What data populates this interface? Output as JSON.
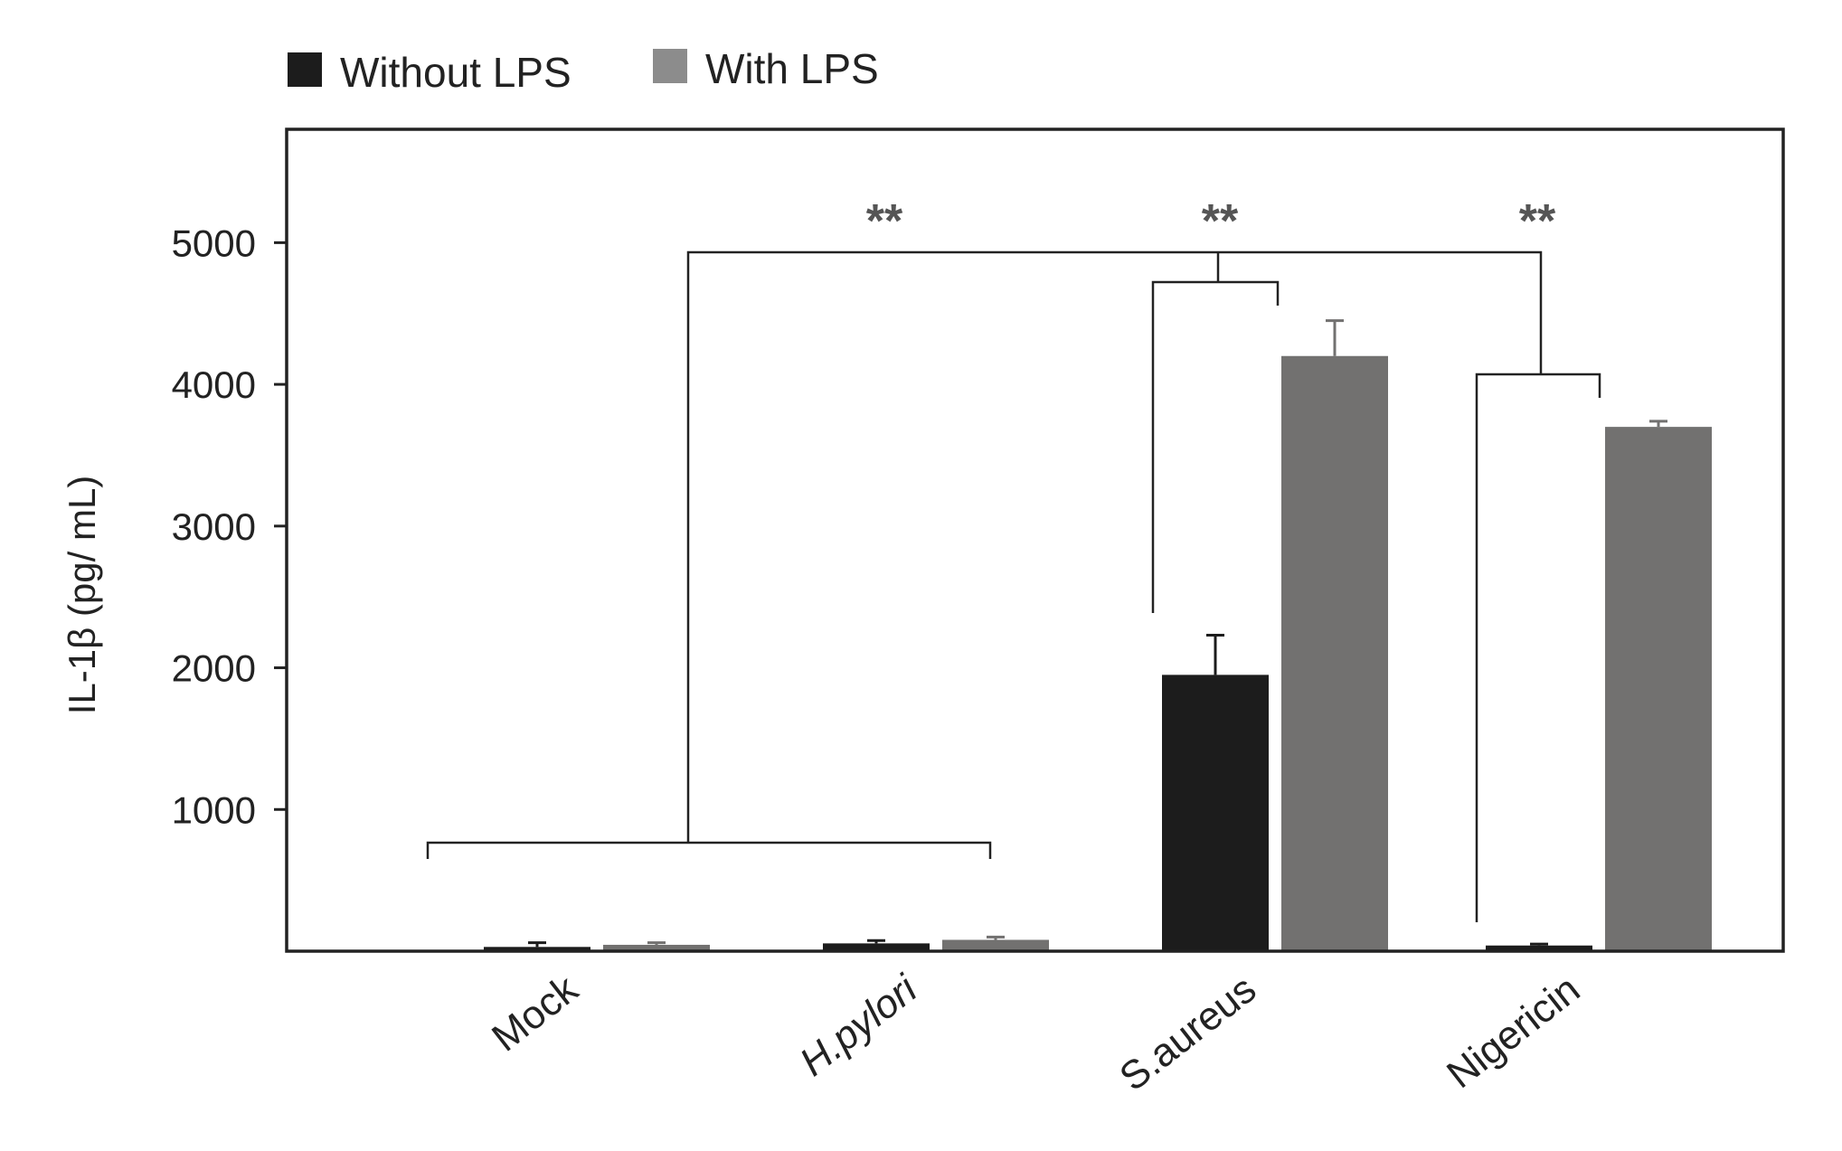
{
  "chart_data": {
    "type": "bar",
    "title": "",
    "xlabel": "",
    "ylabel": "IL-1β (pg/ mL)",
    "ylim": [
      0,
      5800
    ],
    "yticks": [
      1000,
      2000,
      3000,
      4000,
      5000
    ],
    "grid": false,
    "legend_position": "top-left",
    "categories": [
      "Mock",
      "H.pylori",
      "S.aureus",
      "Nigericin"
    ],
    "category_italic": [
      false,
      true,
      false,
      false
    ],
    "series": [
      {
        "name": "Without LPS",
        "color": "#1c1c1c",
        "values": [
          30,
          55,
          1950,
          40
        ],
        "errors": [
          30,
          20,
          280,
          10
        ]
      },
      {
        "name": "With LPS",
        "color": "#727170",
        "values": [
          45,
          80,
          4200,
          3700
        ],
        "errors": [
          15,
          20,
          250,
          40
        ]
      }
    ],
    "significance": [
      {
        "label": "**",
        "description": "Mock/H.pylori group vs S.aureus vs Nigericin"
      },
      {
        "label": "**",
        "description": "S.aureus without vs with LPS"
      },
      {
        "label": "**",
        "description": "Nigericin without vs with LPS"
      }
    ]
  },
  "legend_swatch_colors": [
    "#1c1c1c",
    "#8c8c8c"
  ]
}
